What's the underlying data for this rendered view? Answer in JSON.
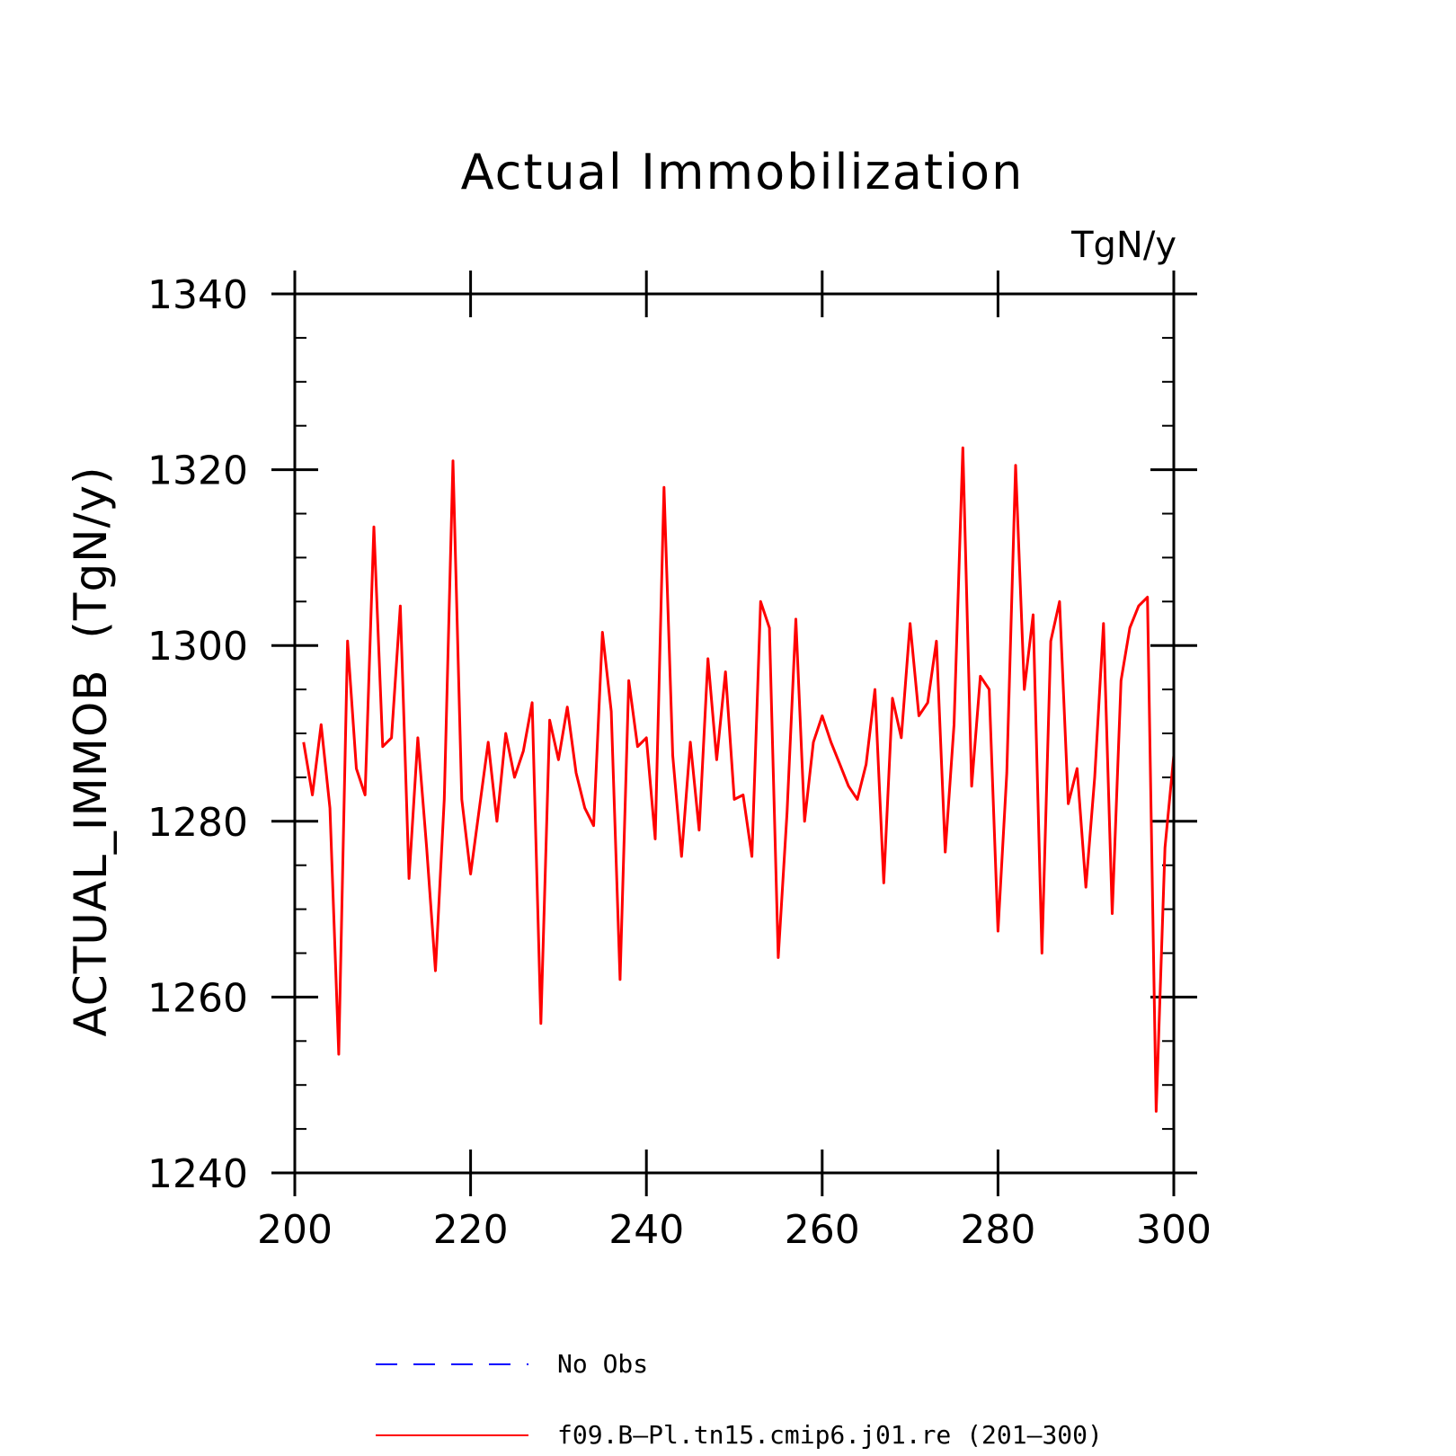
{
  "chart_data": {
    "type": "line",
    "title": "Actual Immobilization",
    "units_label": "TgN/y",
    "ylabel": "ACTUAL_IMMOB  (TgN/y)",
    "xlabel": "",
    "xlim": [
      200,
      300
    ],
    "ylim": [
      1240,
      1340
    ],
    "x_ticks": [
      "200",
      "220",
      "240",
      "260",
      "280",
      "300"
    ],
    "y_ticks": [
      "1240",
      "1260",
      "1280",
      "1300",
      "1320",
      "1340"
    ],
    "grid": false,
    "legend_position": "bottom",
    "legend": [
      {
        "label": "No Obs",
        "color": "#0000ff",
        "style": "dashed"
      },
      {
        "label": "f09.B–Pl.tn15.cmip6.j01.re (201–300)",
        "color": "#ff0000",
        "style": "solid"
      }
    ],
    "series": [
      {
        "name": "f09.B–Pl.tn15.cmip6.j01.re (201–300)",
        "color": "#ff0000",
        "x": [
          201,
          202,
          203,
          204,
          205,
          206,
          207,
          208,
          209,
          210,
          211,
          212,
          213,
          214,
          215,
          216,
          217,
          218,
          219,
          220,
          221,
          222,
          223,
          224,
          225,
          226,
          227,
          228,
          229,
          230,
          231,
          232,
          233,
          234,
          235,
          236,
          237,
          238,
          239,
          240,
          241,
          242,
          243,
          244,
          245,
          246,
          247,
          248,
          249,
          250,
          251,
          252,
          253,
          254,
          255,
          256,
          257,
          258,
          259,
          260,
          261,
          262,
          263,
          264,
          265,
          266,
          267,
          268,
          269,
          270,
          271,
          272,
          273,
          274,
          275,
          276,
          277,
          278,
          279,
          280,
          281,
          282,
          283,
          284,
          285,
          286,
          287,
          288,
          289,
          290,
          291,
          292,
          293,
          294,
          295,
          296,
          297,
          298,
          299,
          300
        ],
        "values": [
          1289,
          1283,
          1291,
          1281.5,
          1253.5,
          1300.5,
          1286,
          1283,
          1313.5,
          1288.5,
          1289.5,
          1304.5,
          1273.5,
          1289.5,
          1277,
          1263,
          1282.5,
          1321,
          1282.5,
          1274,
          1281.5,
          1289,
          1280,
          1290,
          1285,
          1288,
          1293.5,
          1257,
          1291.5,
          1287,
          1293,
          1285.5,
          1281.5,
          1279.5,
          1301.5,
          1292.5,
          1262,
          1296,
          1288.5,
          1289.5,
          1278,
          1318,
          1287.5,
          1276,
          1289,
          1279,
          1298.5,
          1287,
          1297,
          1282.5,
          1283,
          1276,
          1305,
          1302,
          1264.5,
          1281,
          1303,
          1280,
          1289,
          1292,
          1289,
          1286.5,
          1284,
          1282.5,
          1286.5,
          1295,
          1273,
          1294,
          1289.5,
          1302.5,
          1292,
          1293.5,
          1300.5,
          1276.5,
          1291,
          1322.5,
          1284,
          1296.5,
          1295,
          1267.5,
          1285.5,
          1320.5,
          1295,
          1303.5,
          1265,
          1300.5,
          1305,
          1282,
          1286,
          1272.5,
          1285,
          1302.5,
          1269.5,
          1296,
          1302,
          1304.5,
          1305.5,
          1247,
          1277,
          1287.5
        ]
      }
    ]
  }
}
